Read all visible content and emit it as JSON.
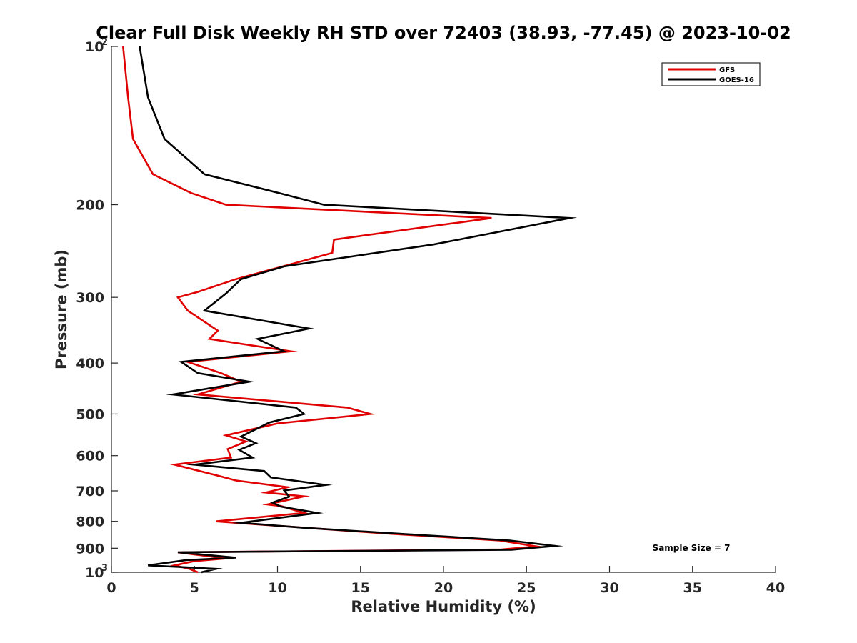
{
  "chart_data": {
    "type": "line",
    "title": "Clear Full Disk Weekly RH STD over 72403 (38.93, -77.45) @ 2023-10-02",
    "xlabel": "Relative Humidity (%)",
    "ylabel": "Pressure (mb)",
    "xlim": [
      0,
      40
    ],
    "ylim": [
      100,
      1000
    ],
    "y_scale": "log",
    "y_reversed": true,
    "x_ticks": [
      "0",
      "5",
      "10",
      "15",
      "20",
      "25",
      "30",
      "35",
      "40"
    ],
    "y_ticks": [
      {
        "value": 100,
        "base": "10",
        "exp": "2"
      },
      {
        "value": 200,
        "label": "200"
      },
      {
        "value": 300,
        "label": "300"
      },
      {
        "value": 400,
        "label": "400"
      },
      {
        "value": 500,
        "label": "500"
      },
      {
        "value": 600,
        "label": "600"
      },
      {
        "value": 700,
        "label": "700"
      },
      {
        "value": 800,
        "label": "800"
      },
      {
        "value": 900,
        "label": "900"
      },
      {
        "value": 1000,
        "base": "10",
        "exp": "3"
      }
    ],
    "grid": false,
    "legend_position": "top-right",
    "annotation": "Sample Size = 7",
    "series": [
      {
        "name": "GFS",
        "color": "#e00000",
        "points": [
          [
            0.7,
            100
          ],
          [
            1.0,
            125
          ],
          [
            1.3,
            150
          ],
          [
            2.5,
            175
          ],
          [
            4.8,
            190
          ],
          [
            6.9,
            200
          ],
          [
            22.9,
            212
          ],
          [
            13.4,
            233
          ],
          [
            13.3,
            247
          ],
          [
            7.5,
            277
          ],
          [
            5.2,
            293
          ],
          [
            4.0,
            300
          ],
          [
            4.6,
            318
          ],
          [
            6.4,
            347
          ],
          [
            5.9,
            360
          ],
          [
            10.8,
            380
          ],
          [
            4.6,
            398
          ],
          [
            6.6,
            418
          ],
          [
            7.8,
            434
          ],
          [
            5.2,
            459
          ],
          [
            14.2,
            486
          ],
          [
            15.6,
            500
          ],
          [
            10.0,
            521
          ],
          [
            6.9,
            549
          ],
          [
            8.1,
            564
          ],
          [
            7.0,
            583
          ],
          [
            7.2,
            605
          ],
          [
            3.8,
            624
          ],
          [
            6.5,
            656
          ],
          [
            7.5,
            669
          ],
          [
            10.6,
            689
          ],
          [
            9.3,
            705
          ],
          [
            11.6,
            717
          ],
          [
            9.4,
            743
          ],
          [
            10.2,
            748
          ],
          [
            11.6,
            771
          ],
          [
            6.3,
            800
          ],
          [
            11.7,
            823
          ],
          [
            16.9,
            845
          ],
          [
            23.4,
            870
          ],
          [
            25.6,
            893
          ],
          [
            23.5,
            905
          ],
          [
            4.0,
            916
          ],
          [
            6.9,
            941
          ],
          [
            5.0,
            952
          ],
          [
            3.8,
            970
          ],
          [
            4.7,
            985
          ],
          [
            5.2,
            1000
          ]
        ]
      },
      {
        "name": "GOES-16",
        "color": "#000000",
        "points": [
          [
            1.7,
            100
          ],
          [
            2.2,
            125
          ],
          [
            3.2,
            150
          ],
          [
            5.6,
            175
          ],
          [
            10.1,
            190
          ],
          [
            12.8,
            200
          ],
          [
            27.6,
            212
          ],
          [
            19.4,
            238
          ],
          [
            10.4,
            262
          ],
          [
            7.8,
            277
          ],
          [
            6.9,
            295
          ],
          [
            5.6,
            318
          ],
          [
            11.9,
            344
          ],
          [
            8.8,
            360
          ],
          [
            10.4,
            380
          ],
          [
            4.2,
            398
          ],
          [
            5.2,
            418
          ],
          [
            8.3,
            434
          ],
          [
            3.7,
            459
          ],
          [
            11.1,
            486
          ],
          [
            11.6,
            500
          ],
          [
            9.5,
            519
          ],
          [
            7.8,
            552
          ],
          [
            8.7,
            568
          ],
          [
            7.7,
            585
          ],
          [
            8.5,
            605
          ],
          [
            5.0,
            624
          ],
          [
            9.2,
            642
          ],
          [
            9.6,
            660
          ],
          [
            12.9,
            682
          ],
          [
            10.4,
            699
          ],
          [
            10.7,
            718
          ],
          [
            9.7,
            737
          ],
          [
            10.2,
            750
          ],
          [
            12.4,
            771
          ],
          [
            7.8,
            805
          ],
          [
            11.6,
            823
          ],
          [
            17.7,
            846
          ],
          [
            24.0,
            870
          ],
          [
            26.7,
            891
          ],
          [
            24.1,
            906
          ],
          [
            4.0,
            916
          ],
          [
            7.5,
            938
          ],
          [
            4.5,
            948
          ],
          [
            2.2,
            970
          ],
          [
            6.3,
            985
          ],
          [
            5.4,
            1000
          ]
        ]
      }
    ]
  }
}
